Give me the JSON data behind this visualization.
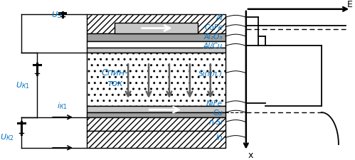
{
  "bg_color": "#ffffff",
  "blk": "#000000",
  "blu": "#0070C0",
  "gray_dark": "#606060",
  "gray_med": "#a0a0a0",
  "gray_light": "#c8c8c8",
  "fig_width": 4.99,
  "fig_height": 2.26,
  "dpi": 100,
  "labels_right": [
    "Al",
    "CoFe",
    "Al₂O₃",
    "Al/Cu",
    "Si(пл.)",
    "NiFe",
    "Cu",
    "n-Si",
    "In"
  ],
  "label_y_screen": [
    18,
    32,
    46,
    60,
    100,
    144,
    158,
    172,
    195
  ],
  "E_label": "E",
  "x_label": "x",
  "spin_text": "Спин-\nток"
}
